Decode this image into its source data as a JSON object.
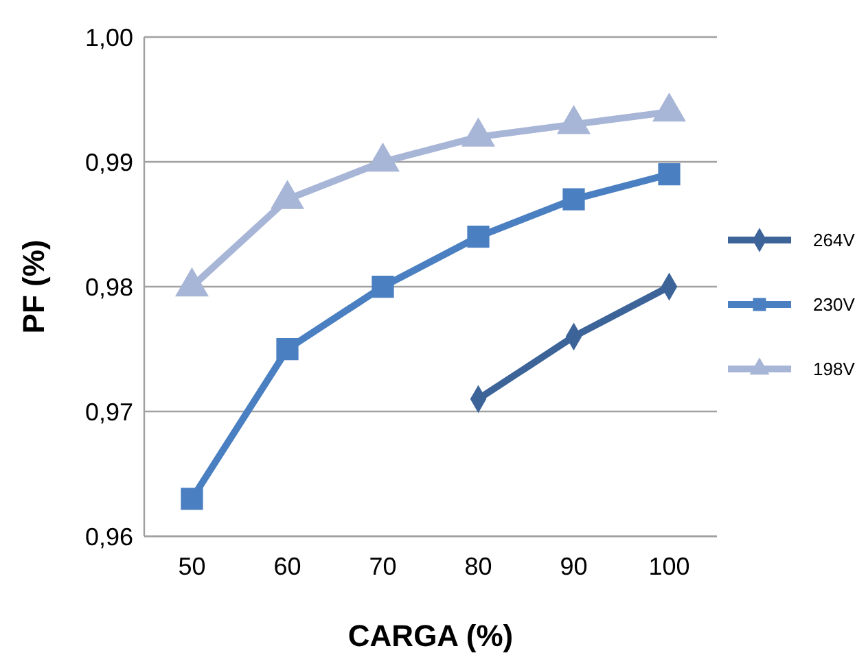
{
  "chart_data": {
    "type": "line",
    "xlabel": "CARGA (%)",
    "ylabel": "PF (%)",
    "categories": [
      "50",
      "60",
      "70",
      "80",
      "90",
      "100"
    ],
    "series": [
      {
        "name": "264V",
        "color": "#3d6499",
        "marker": "diamond",
        "values": [
          null,
          null,
          null,
          0.971,
          0.976,
          0.98
        ]
      },
      {
        "name": "230V",
        "color": "#4a7fc1",
        "marker": "square",
        "values": [
          0.963,
          0.975,
          0.98,
          0.984,
          0.987,
          0.989
        ]
      },
      {
        "name": "198V",
        "color": "#a7b5d6",
        "marker": "triangle",
        "values": [
          0.98,
          0.987,
          0.99,
          0.992,
          0.993,
          0.994
        ]
      }
    ],
    "ylim": [
      0.96,
      1.0
    ],
    "yticks": [
      {
        "value": 0.96,
        "label": "0,96"
      },
      {
        "value": 0.97,
        "label": "0,97"
      },
      {
        "value": 0.98,
        "label": "0,98"
      },
      {
        "value": 0.99,
        "label": "0,99"
      },
      {
        "value": 1.0,
        "label": "1,00"
      }
    ],
    "grid": "y",
    "legend": "right",
    "line_style": "solid"
  }
}
